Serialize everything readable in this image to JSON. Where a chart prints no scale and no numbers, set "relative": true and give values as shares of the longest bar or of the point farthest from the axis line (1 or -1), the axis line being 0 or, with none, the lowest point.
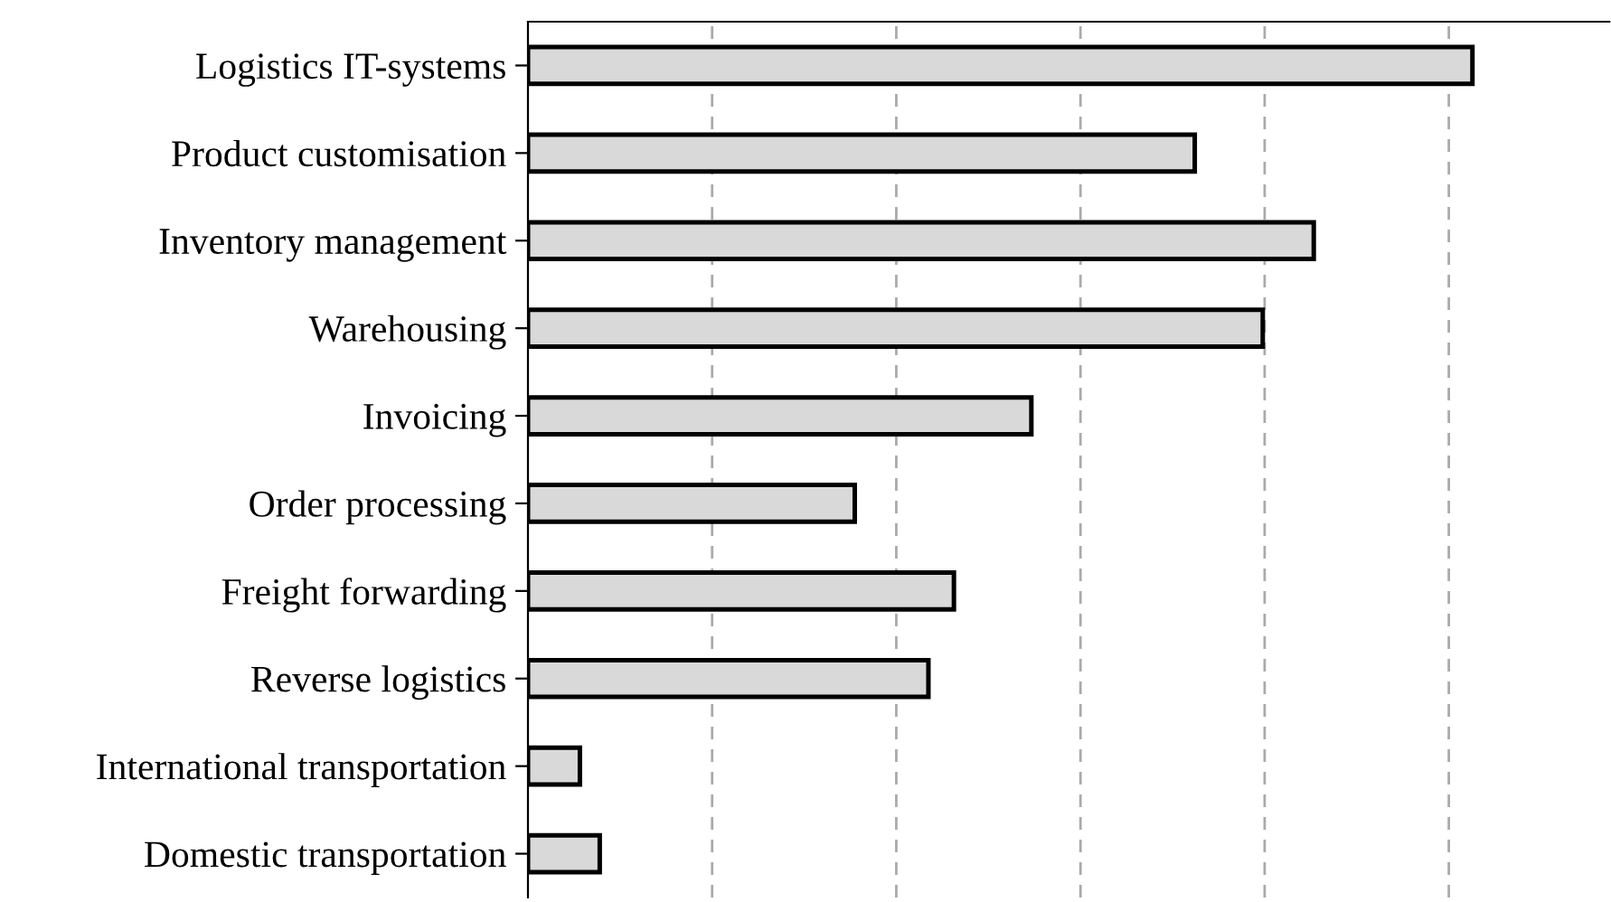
{
  "chart_data": {
    "type": "bar",
    "orientation": "horizontal",
    "relative": true,
    "categories": [
      "Logistics IT-systems",
      "Product customisation",
      "Inventory management",
      "Warehousing",
      "Invoicing",
      "Order processing",
      "Freight forwarding",
      "Reverse logistics",
      "International transportation",
      "Domestic transportation"
    ],
    "values": [
      1,
      0.706,
      0.832,
      0.778,
      0.533,
      0.346,
      0.451,
      0.424,
      0.055,
      0.076
    ],
    "color": "#d9d9d9",
    "grid": "x",
    "tick_labels": "y"
  }
}
